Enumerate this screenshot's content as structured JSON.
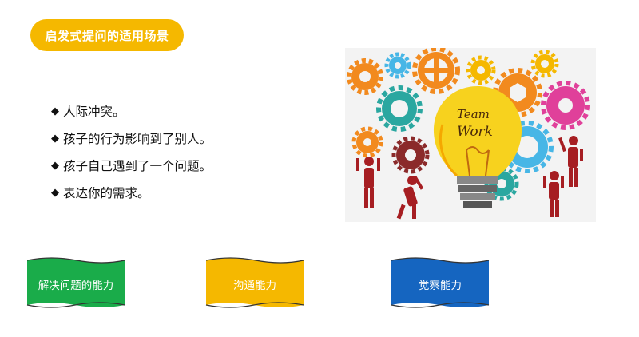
{
  "header": {
    "title": "启发式提问的适用场景"
  },
  "bullets": {
    "marker": "◆",
    "items": [
      "人际冲突。",
      "孩子的行为影响到了别人。",
      "孩子自己遇到了一个问题。",
      "表达你的需求。"
    ]
  },
  "illustration": {
    "bulb_text_line1": "Team",
    "bulb_text_line2": "Work",
    "icons": [
      "gear-icon",
      "lightbulb-icon",
      "person-icon"
    ]
  },
  "abilities": [
    {
      "label": "解决问题的能力",
      "color": "#1aac4a"
    },
    {
      "label": "沟通能力",
      "color": "#f5b800"
    },
    {
      "label": "觉察能力",
      "color": "#1565c0"
    }
  ],
  "colors": {
    "accent": "#f5b800",
    "text": "#111111"
  }
}
